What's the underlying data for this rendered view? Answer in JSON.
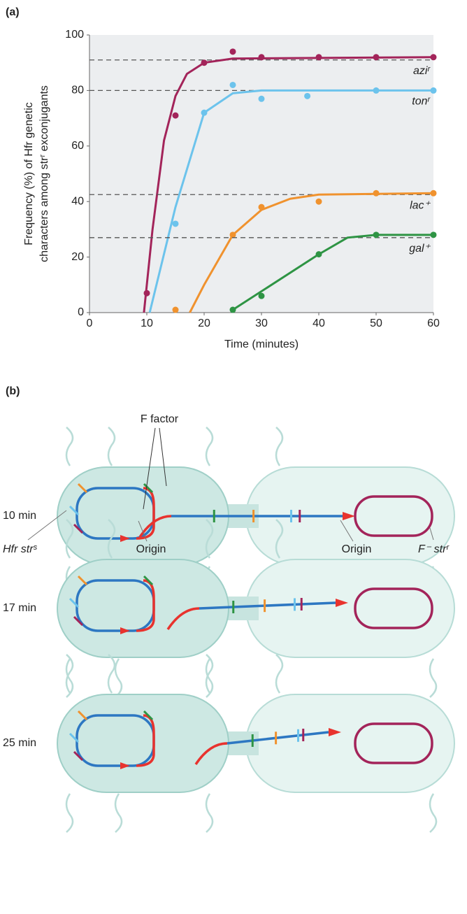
{
  "chart_data": {
    "type": "scatter",
    "panel_label": "(a)",
    "xlabel": "Time (minutes)",
    "ylabel": [
      "Frequency (%) of Hfr genetic",
      "characters among strʳ exconjugants"
    ],
    "xlim": [
      0,
      60
    ],
    "ylim": [
      0,
      100
    ],
    "xticks": [
      0,
      10,
      20,
      30,
      40,
      50,
      60
    ],
    "yticks": [
      0,
      20,
      40,
      60,
      80,
      100
    ],
    "series": [
      {
        "name": "aziʳ",
        "color": "#a3245a",
        "x": [
          10,
          15,
          20,
          25,
          30,
          40,
          50,
          60
        ],
        "values": [
          7,
          71,
          90,
          94,
          92,
          92,
          92,
          92
        ],
        "curve_x": [
          9.5,
          11,
          13,
          15,
          17,
          20,
          25,
          60
        ],
        "curve_y": [
          0,
          30,
          62,
          78,
          86,
          90,
          91.5,
          92
        ],
        "asymptote": 91
      },
      {
        "name": "tonʳ",
        "color": "#6cc3ec",
        "x": [
          15,
          20,
          25,
          30,
          38,
          50,
          60
        ],
        "values": [
          32,
          72,
          82,
          77,
          78,
          80,
          80
        ],
        "curve_x": [
          10.5,
          15,
          20,
          25,
          30,
          60
        ],
        "curve_y": [
          0,
          38,
          72,
          79,
          80,
          80
        ],
        "asymptote": 80
      },
      {
        "name": "lac⁺",
        "color": "#f0922e",
        "x": [
          15,
          25,
          30,
          40,
          50,
          60
        ],
        "values": [
          1,
          28,
          38,
          40,
          43,
          43
        ],
        "curve_x": [
          17.5,
          20,
          25,
          30,
          35,
          40,
          60
        ],
        "curve_y": [
          0,
          10,
          28,
          37,
          41,
          42.5,
          43
        ],
        "asymptote": 42.5
      },
      {
        "name": "gal⁺",
        "color": "#2e9444",
        "x": [
          25,
          30,
          40,
          50,
          60
        ],
        "values": [
          1,
          6,
          21,
          28,
          28
        ],
        "curve_x": [
          25,
          40,
          45,
          50,
          60
        ],
        "curve_y": [
          1,
          21,
          27,
          28,
          28
        ],
        "asymptote": 27
      }
    ]
  },
  "diagram": {
    "label": "(b)",
    "f_factor": "F factor",
    "times": [
      "10 min",
      "17 min",
      "25 min"
    ],
    "donor": "Hfr strˢ",
    "origin_donor": "Origin",
    "origin_recipient": "Origin",
    "recipient": "F⁻ strʳ"
  }
}
